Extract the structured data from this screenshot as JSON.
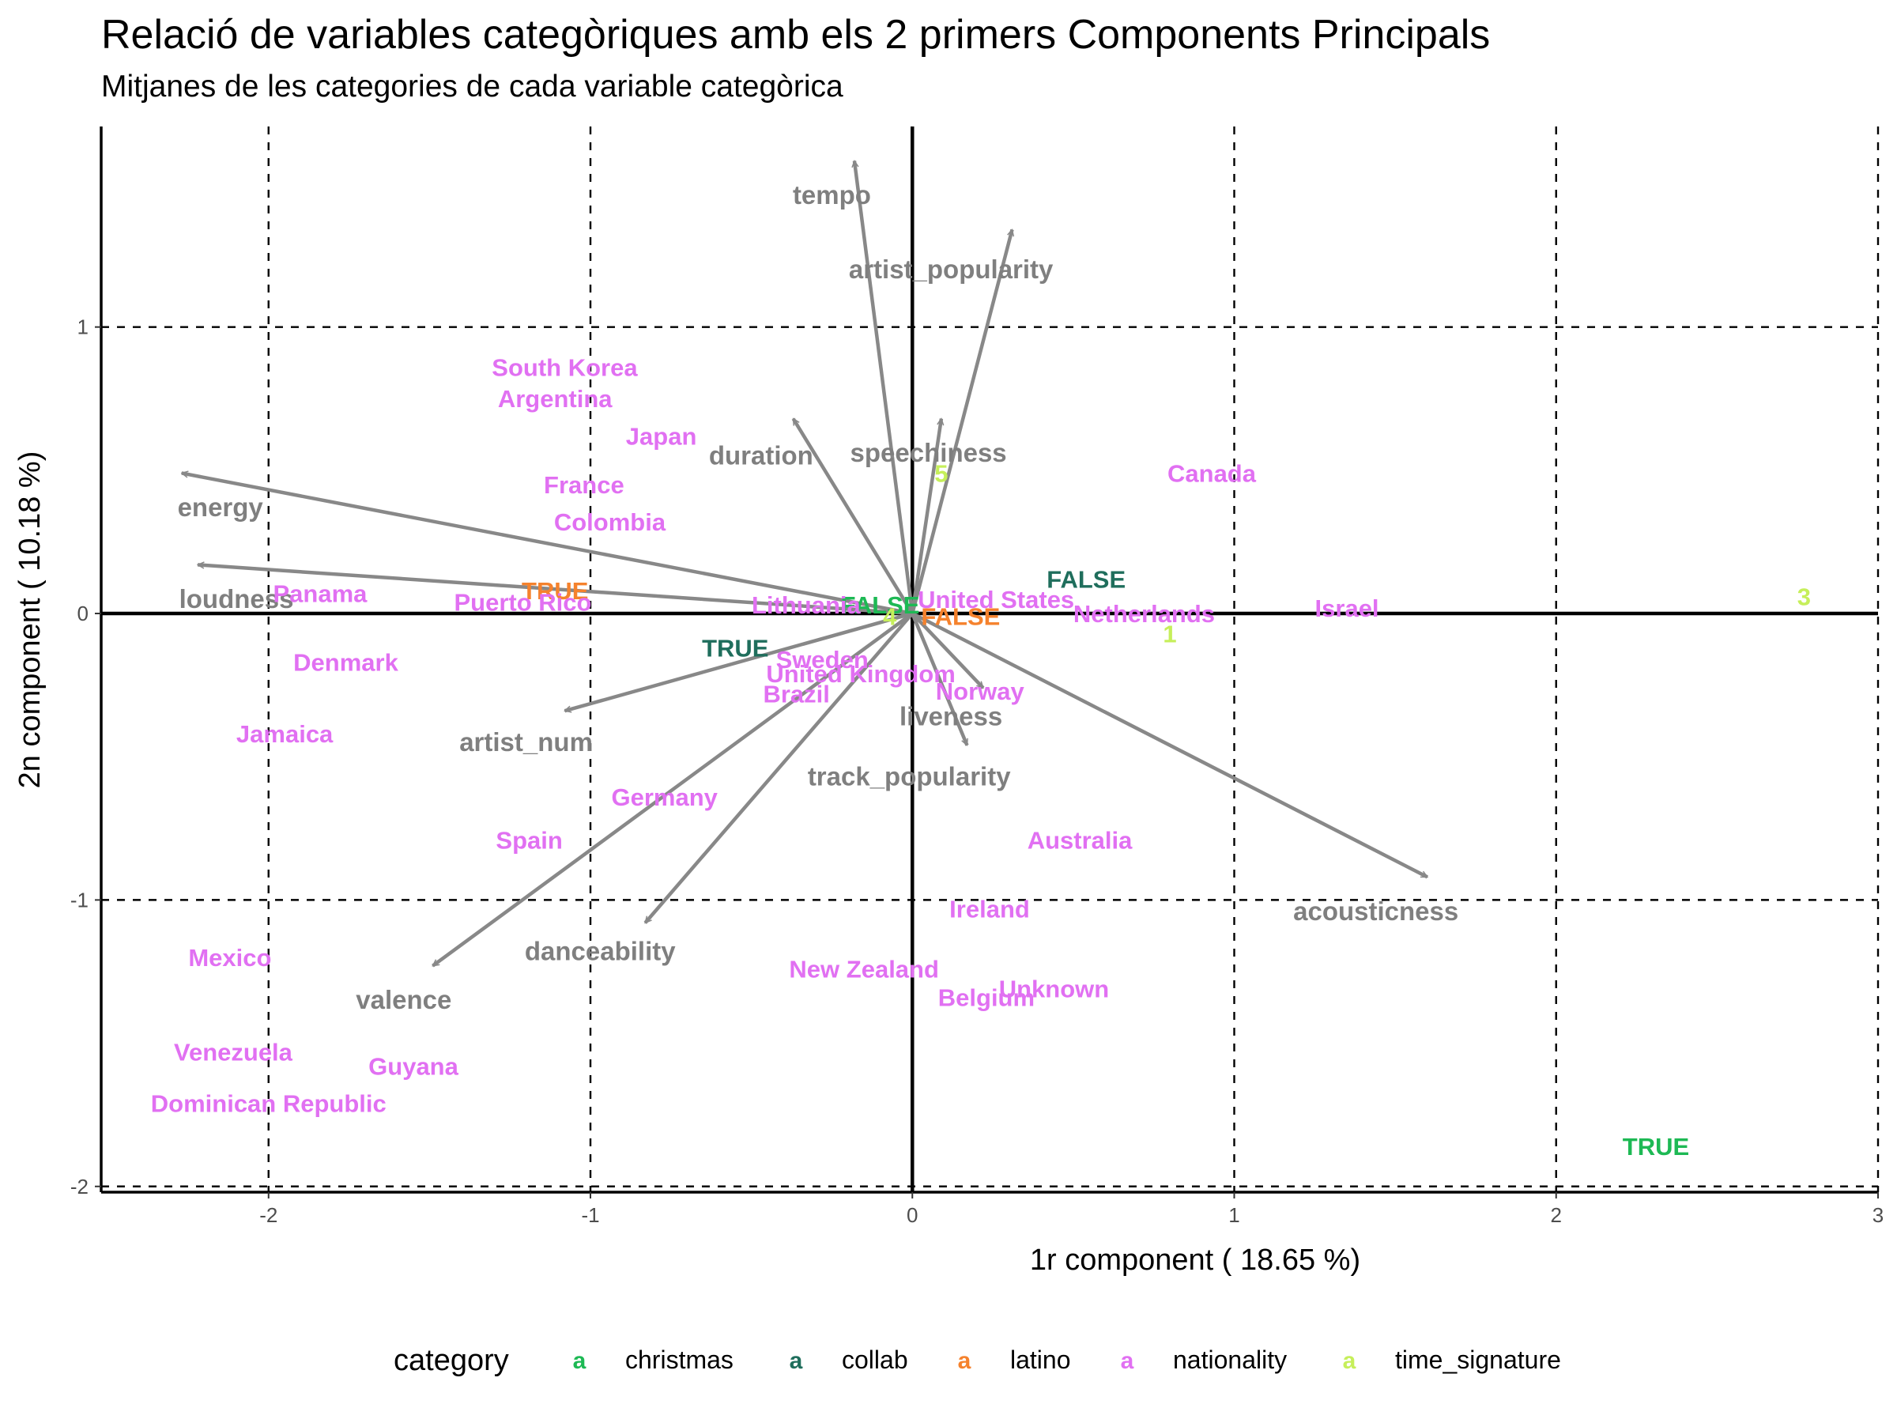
{
  "title": "Relació de variables categòriques amb els 2 primers Components Principals",
  "subtitle": "Mitjanes de les categories de cada variable categòrica",
  "chart_data": {
    "type": "scatter",
    "title": "Relació de variables categòriques amb els 2 primers Components Principals",
    "subtitle": "Mitjanes de les categories de cada variable categòrica",
    "xlabel": "1r component ( 18.65 %)",
    "ylabel": "2n component ( 10.18 %)",
    "xlim": [
      -2.52,
      3.0
    ],
    "ylim": [
      -2.02,
      1.7
    ],
    "x_ticks": [
      -2,
      -1,
      0,
      1,
      2,
      3
    ],
    "y_ticks": [
      -2,
      -1,
      0,
      1
    ],
    "x_tick_labels": [
      "-2",
      "-1",
      "0",
      "1",
      "2",
      "3"
    ],
    "y_tick_labels": [
      "-2",
      "-1",
      "0",
      "1"
    ],
    "dashed_grid_x": [
      -2,
      -1,
      1,
      2,
      3
    ],
    "dashed_grid_y": [
      -2,
      -1,
      1
    ],
    "arrow_color": "#888888",
    "arrows": [
      {
        "name": "tempo",
        "x": -0.18,
        "y": 1.58,
        "label_x": -0.25,
        "label_y": 1.46
      },
      {
        "name": "artist_popularity",
        "x": 0.31,
        "y": 1.34,
        "label_x": 0.12,
        "label_y": 1.2
      },
      {
        "name": "speechiness",
        "x": 0.09,
        "y": 0.68,
        "label_x": 0.05,
        "label_y": 0.56
      },
      {
        "name": "duration",
        "x": -0.37,
        "y": 0.68,
        "label_x": -0.47,
        "label_y": 0.55
      },
      {
        "name": "energy",
        "x": -2.27,
        "y": 0.49,
        "label_x": -2.15,
        "label_y": 0.37
      },
      {
        "name": "loudness",
        "x": -2.22,
        "y": 0.17,
        "label_x": -2.1,
        "label_y": 0.05
      },
      {
        "name": "artist_num",
        "x": -1.08,
        "y": -0.34,
        "label_x": -1.2,
        "label_y": -0.45
      },
      {
        "name": "danceability",
        "x": -0.83,
        "y": -1.08,
        "label_x": -0.97,
        "label_y": -1.18
      },
      {
        "name": "valence",
        "x": -1.49,
        "y": -1.23,
        "label_x": -1.58,
        "label_y": -1.35
      },
      {
        "name": "liveness",
        "x": 0.17,
        "y": -0.46,
        "label_x": 0.12,
        "label_y": -0.36
      },
      {
        "name": "track_popularity",
        "x": 0.22,
        "y": -0.26,
        "label_x": -0.01,
        "label_y": -0.57
      },
      {
        "name": "acousticness",
        "x": 1.6,
        "y": -0.92,
        "label_x": 1.44,
        "label_y": -1.04
      }
    ],
    "series": [
      {
        "name": "christmas",
        "color": "#1DB954",
        "points": [
          {
            "label": "FALSE",
            "x": -0.1,
            "y": 0.03
          },
          {
            "label": "TRUE",
            "x": 2.31,
            "y": -1.86
          }
        ]
      },
      {
        "name": "collab",
        "color": "#1F6E5C",
        "points": [
          {
            "label": "FALSE",
            "x": 0.54,
            "y": 0.12
          },
          {
            "label": "TRUE",
            "x": -0.55,
            "y": -0.12
          }
        ]
      },
      {
        "name": "latino",
        "color": "#F5822D",
        "points": [
          {
            "label": "TRUE",
            "x": -1.11,
            "y": 0.08
          },
          {
            "label": "FALSE",
            "x": 0.15,
            "y": -0.01
          }
        ]
      },
      {
        "name": "nationality",
        "color": "#E170F2",
        "points": [
          {
            "label": "South Korea",
            "x": -1.08,
            "y": 0.86
          },
          {
            "label": "Argentina",
            "x": -1.11,
            "y": 0.75
          },
          {
            "label": "Japan",
            "x": -0.78,
            "y": 0.62
          },
          {
            "label": "France",
            "x": -1.02,
            "y": 0.45
          },
          {
            "label": "Colombia",
            "x": -0.94,
            "y": 0.32
          },
          {
            "label": "Panama",
            "x": -1.84,
            "y": 0.07
          },
          {
            "label": "Puerto Rico",
            "x": -1.21,
            "y": 0.04
          },
          {
            "label": "Lithuania",
            "x": -0.33,
            "y": 0.03
          },
          {
            "label": "United States",
            "x": 0.26,
            "y": 0.05
          },
          {
            "label": "Netherlands",
            "x": 0.72,
            "y": 0.0
          },
          {
            "label": "Israel",
            "x": 1.35,
            "y": 0.02
          },
          {
            "label": "Canada",
            "x": 0.93,
            "y": 0.49
          },
          {
            "label": "Denmark",
            "x": -1.76,
            "y": -0.17
          },
          {
            "label": "Sweden",
            "x": -0.28,
            "y": -0.16
          },
          {
            "label": "United Kingdom",
            "x": -0.16,
            "y": -0.21
          },
          {
            "label": "Brazil",
            "x": -0.36,
            "y": -0.28
          },
          {
            "label": "Norway",
            "x": 0.21,
            "y": -0.27
          },
          {
            "label": "Jamaica",
            "x": -1.95,
            "y": -0.42
          },
          {
            "label": "Germany",
            "x": -0.77,
            "y": -0.64
          },
          {
            "label": "Spain",
            "x": -1.19,
            "y": -0.79
          },
          {
            "label": "Australia",
            "x": 0.52,
            "y": -0.79
          },
          {
            "label": "Ireland",
            "x": 0.24,
            "y": -1.03
          },
          {
            "label": "Mexico",
            "x": -2.12,
            "y": -1.2
          },
          {
            "label": "New Zealand",
            "x": -0.15,
            "y": -1.24
          },
          {
            "label": "Unknown",
            "x": 0.44,
            "y": -1.31
          },
          {
            "label": "Belgium",
            "x": 0.23,
            "y": -1.34
          },
          {
            "label": "Venezuela",
            "x": -2.11,
            "y": -1.53
          },
          {
            "label": "Guyana",
            "x": -1.55,
            "y": -1.58
          },
          {
            "label": "Dominican Republic",
            "x": -2.0,
            "y": -1.71
          }
        ]
      },
      {
        "name": "time_signature",
        "color": "#C6EF5A",
        "points": [
          {
            "label": "5",
            "x": 0.09,
            "y": 0.49
          },
          {
            "label": "4",
            "x": -0.07,
            "y": -0.01
          },
          {
            "label": "1",
            "x": 0.8,
            "y": -0.07
          },
          {
            "label": "3",
            "x": 2.77,
            "y": 0.06
          }
        ]
      }
    ],
    "legend": {
      "title": "category",
      "position": "bottom",
      "key_glyph": "a",
      "entries": [
        {
          "label": "christmas",
          "color": "#1DB954"
        },
        {
          "label": "collab",
          "color": "#1F6E5C"
        },
        {
          "label": "latino",
          "color": "#F5822D"
        },
        {
          "label": "nationality",
          "color": "#E170F2"
        },
        {
          "label": "time_signature",
          "color": "#C6EF5A"
        }
      ]
    }
  }
}
